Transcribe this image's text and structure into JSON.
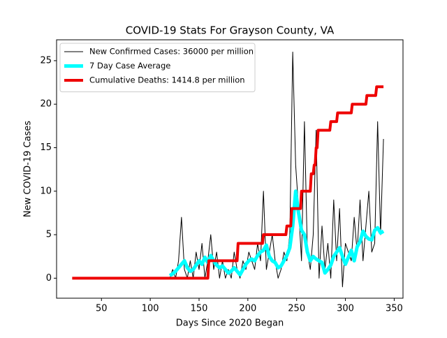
{
  "chart_data": {
    "type": "line",
    "title": "COVID-19 Stats For Grayson County, VA",
    "xlabel": "Days Since 2020 Began",
    "ylabel": "New COVID-19 Cases",
    "xlim": [
      4,
      359
    ],
    "ylim": [
      -2.3,
      27.4
    ],
    "xticks": [
      50,
      100,
      150,
      200,
      250,
      300,
      350
    ],
    "yticks": [
      0,
      5,
      10,
      15,
      20,
      25
    ],
    "grid": false,
    "legend": "upper left",
    "series": [
      {
        "name": "New Confirmed Cases: 36000 per million",
        "color": "#000000",
        "width": 1,
        "x": [
          120,
          123,
          126,
          129,
          132,
          135,
          138,
          141,
          144,
          147,
          150,
          153,
          156,
          159,
          162,
          165,
          168,
          171,
          174,
          177,
          180,
          183,
          186,
          189,
          192,
          195,
          198,
          201,
          204,
          207,
          210,
          213,
          216,
          219,
          222,
          225,
          228,
          231,
          234,
          237,
          240,
          243,
          246,
          249,
          252,
          255,
          258,
          261,
          264,
          267,
          270,
          273,
          276,
          279,
          282,
          285,
          288,
          291,
          294,
          297,
          300,
          303,
          306,
          309,
          312,
          315,
          318,
          321,
          324,
          327,
          330,
          333,
          336,
          339
        ],
        "values": [
          0,
          1,
          0,
          2,
          7,
          1,
          0,
          2,
          0,
          3,
          1,
          4,
          0,
          2,
          5,
          1,
          3,
          0,
          2,
          0,
          1,
          0,
          3,
          1,
          0,
          2,
          1,
          3,
          2,
          1,
          4,
          2,
          10,
          1,
          3,
          5,
          2,
          0,
          1,
          3,
          2,
          5,
          26,
          13,
          8,
          2,
          18,
          3,
          1,
          5,
          17,
          0,
          6,
          1,
          4,
          0,
          9,
          2,
          8,
          -1,
          4,
          3,
          2,
          7,
          3,
          9,
          2,
          6,
          10,
          3,
          4,
          18,
          5,
          16
        ]
      },
      {
        "name": "7 Day Case Average",
        "color": "#00ffff",
        "width": 5,
        "x": [
          120,
          123,
          126,
          129,
          132,
          135,
          138,
          141,
          144,
          147,
          150,
          153,
          156,
          159,
          162,
          165,
          168,
          171,
          174,
          177,
          180,
          183,
          186,
          189,
          192,
          195,
          198,
          201,
          204,
          207,
          210,
          213,
          216,
          219,
          222,
          225,
          228,
          231,
          234,
          237,
          240,
          243,
          246,
          249,
          252,
          255,
          258,
          261,
          264,
          267,
          270,
          273,
          276,
          279,
          282,
          285,
          288,
          291,
          294,
          297,
          300,
          303,
          306,
          309,
          312,
          315,
          318,
          321,
          324,
          327,
          330,
          333,
          336,
          339
        ],
        "values": [
          0.3,
          0.5,
          0.8,
          1.2,
          1.6,
          2,
          1.2,
          0.8,
          1,
          1.5,
          2,
          1.6,
          2.4,
          1.8,
          2.6,
          2,
          1.5,
          1.2,
          1.4,
          1,
          0.6,
          0.8,
          1.2,
          0.8,
          0.4,
          1,
          1.6,
          2,
          2.2,
          2,
          2.6,
          3,
          3.2,
          3.8,
          2.5,
          2,
          1.8,
          1.2,
          1.4,
          2,
          2.6,
          3.5,
          6,
          10,
          7.5,
          5.5,
          5,
          3,
          2,
          2.5,
          2.2,
          2,
          1.8,
          0.6,
          1,
          1.5,
          2.5,
          3,
          3.5,
          2.5,
          1.6,
          2.4,
          3.2,
          2,
          3.6,
          4.2,
          5.4,
          4.8,
          4.5,
          4.4,
          5.5,
          5.8,
          5.2,
          5.4
        ]
      },
      {
        "name": "Cumulative Deaths: 1414.8 per million",
        "color": "#ee0000",
        "width": 4,
        "x": [
          20,
          159,
          160,
          189,
          190,
          215,
          216,
          239,
          240,
          244,
          245,
          254,
          255,
          264,
          265,
          267,
          268,
          269,
          270,
          271,
          272,
          284,
          285,
          291,
          292,
          306,
          307,
          321,
          322,
          331,
          332,
          339
        ],
        "values": [
          0,
          0,
          2,
          2,
          4,
          4,
          5,
          5,
          6,
          6,
          8,
          8,
          10,
          10,
          12,
          12,
          13,
          13,
          15,
          15,
          17,
          17,
          18,
          18,
          19,
          19,
          20,
          20,
          21,
          21,
          22,
          22
        ]
      }
    ]
  }
}
